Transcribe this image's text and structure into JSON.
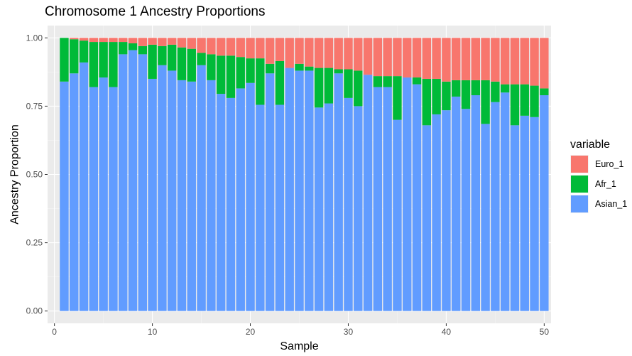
{
  "chart_data": {
    "type": "bar",
    "stacked": true,
    "title": "Chromosome 1 Ancestry Proportions",
    "xlabel": "Sample",
    "ylabel": "Ancestry Proportion",
    "xlim": [
      0,
      51
    ],
    "ylim": [
      0,
      1
    ],
    "x_ticks": [
      0,
      10,
      20,
      30,
      40,
      50
    ],
    "x_tick_labels": [
      "0",
      "10",
      "20",
      "30",
      "40",
      "50"
    ],
    "y_ticks": [
      0,
      0.25,
      0.5,
      0.75,
      1.0
    ],
    "y_tick_labels": [
      "0.00",
      "0.25",
      "0.50",
      "0.75",
      "1.00"
    ],
    "grid": true,
    "legend_position": "right",
    "legend_title": "variable",
    "x": [
      1,
      2,
      3,
      4,
      5,
      6,
      7,
      8,
      9,
      10,
      11,
      12,
      13,
      14,
      15,
      16,
      17,
      18,
      19,
      20,
      21,
      22,
      23,
      24,
      25,
      26,
      27,
      28,
      29,
      30,
      31,
      32,
      33,
      34,
      35,
      36,
      37,
      38,
      39,
      40,
      41,
      42,
      43,
      44,
      45,
      46,
      47,
      48,
      49,
      50
    ],
    "series": [
      {
        "name": "Asian_1",
        "color": "#619CFF",
        "values": [
          0.84,
          0.87,
          0.91,
          0.82,
          0.855,
          0.82,
          0.94,
          0.955,
          0.94,
          0.85,
          0.9,
          0.88,
          0.845,
          0.84,
          0.9,
          0.845,
          0.795,
          0.78,
          0.815,
          0.835,
          0.755,
          0.87,
          0.755,
          0.89,
          0.88,
          0.88,
          0.745,
          0.76,
          0.87,
          0.78,
          0.75,
          0.865,
          0.82,
          0.82,
          0.7,
          0.855,
          0.83,
          0.68,
          0.72,
          0.735,
          0.785,
          0.74,
          0.79,
          0.685,
          0.765,
          0.8,
          0.68,
          0.715,
          0.71,
          0.79
        ]
      },
      {
        "name": "Afr_1",
        "color": "#00BA38",
        "values": [
          0.16,
          0.125,
          0.08,
          0.165,
          0.13,
          0.165,
          0.045,
          0.025,
          0.03,
          0.125,
          0.07,
          0.095,
          0.12,
          0.12,
          0.045,
          0.095,
          0.14,
          0.155,
          0.115,
          0.09,
          0.17,
          0.035,
          0.16,
          0.0,
          0.025,
          0.015,
          0.145,
          0.13,
          0.015,
          0.105,
          0.13,
          0.0,
          0.04,
          0.04,
          0.16,
          0.0,
          0.025,
          0.17,
          0.13,
          0.105,
          0.06,
          0.105,
          0.055,
          0.16,
          0.075,
          0.03,
          0.15,
          0.115,
          0.115,
          0.025
        ]
      },
      {
        "name": "Euro_1",
        "color": "#F8766D",
        "values": [
          0.0,
          0.005,
          0.01,
          0.015,
          0.015,
          0.015,
          0.015,
          0.02,
          0.03,
          0.025,
          0.03,
          0.025,
          0.035,
          0.04,
          0.055,
          0.06,
          0.065,
          0.065,
          0.07,
          0.075,
          0.075,
          0.095,
          0.085,
          0.11,
          0.095,
          0.105,
          0.11,
          0.11,
          0.115,
          0.115,
          0.12,
          0.135,
          0.14,
          0.14,
          0.14,
          0.145,
          0.145,
          0.15,
          0.15,
          0.16,
          0.155,
          0.155,
          0.155,
          0.155,
          0.16,
          0.17,
          0.17,
          0.17,
          0.175,
          0.185
        ]
      }
    ],
    "legend_order": [
      "Euro_1",
      "Afr_1",
      "Asian_1"
    ]
  }
}
